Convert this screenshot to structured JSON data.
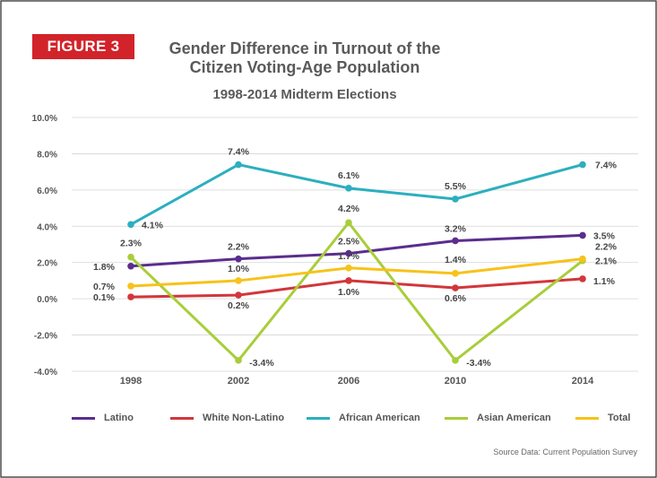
{
  "figure_label": "FIGURE 3",
  "chart_data": {
    "type": "line",
    "title": "Gender Difference in Turnout of the Citizen Voting-Age Population",
    "subtitle": "1998-2014 Midterm Elections",
    "categories": [
      "1998",
      "2002",
      "2006",
      "2010",
      "2014"
    ],
    "ylim": [
      -4,
      10
    ],
    "yticks": [
      "10.0%",
      "8.0%",
      "6.0%",
      "4.0%",
      "2.0%",
      "0.0%",
      "-2.0%",
      "-4.0%"
    ],
    "grid": true,
    "legend_position": "bottom",
    "series": [
      {
        "name": "Latino",
        "color": "#5b2d8e",
        "values": [
          1.8,
          2.2,
          2.5,
          3.2,
          3.5
        ],
        "labels": [
          "1.8%",
          "2.2%",
          "2.5%",
          "3.2%",
          "3.5%"
        ]
      },
      {
        "name": "White Non-Latino",
        "color": "#d2363a",
        "values": [
          0.1,
          0.2,
          1.0,
          0.6,
          1.1
        ],
        "labels": [
          "0.1%",
          "0.2%",
          "1.0%",
          "0.6%",
          "1.1%"
        ]
      },
      {
        "name": "African American",
        "color": "#2cafbe",
        "values": [
          4.1,
          7.4,
          6.1,
          5.5,
          7.4
        ],
        "labels": [
          "4.1%",
          "7.4%",
          "6.1%",
          "5.5%",
          "7.4%"
        ]
      },
      {
        "name": "Asian American",
        "color": "#a9cd3a",
        "values": [
          2.3,
          -3.4,
          4.2,
          -3.4,
          2.1
        ],
        "labels": [
          "2.3%",
          "-3.4%",
          "4.2%",
          "-3.4%",
          "2.1%"
        ]
      },
      {
        "name": "Total",
        "color": "#f7c21a",
        "values": [
          0.7,
          1.0,
          1.7,
          1.4,
          2.2
        ],
        "labels": [
          "0.7%",
          "1.0%",
          "1.7%",
          "1.4%",
          "2.2%"
        ]
      }
    ]
  },
  "source": "Source Data: Current Population Survey"
}
